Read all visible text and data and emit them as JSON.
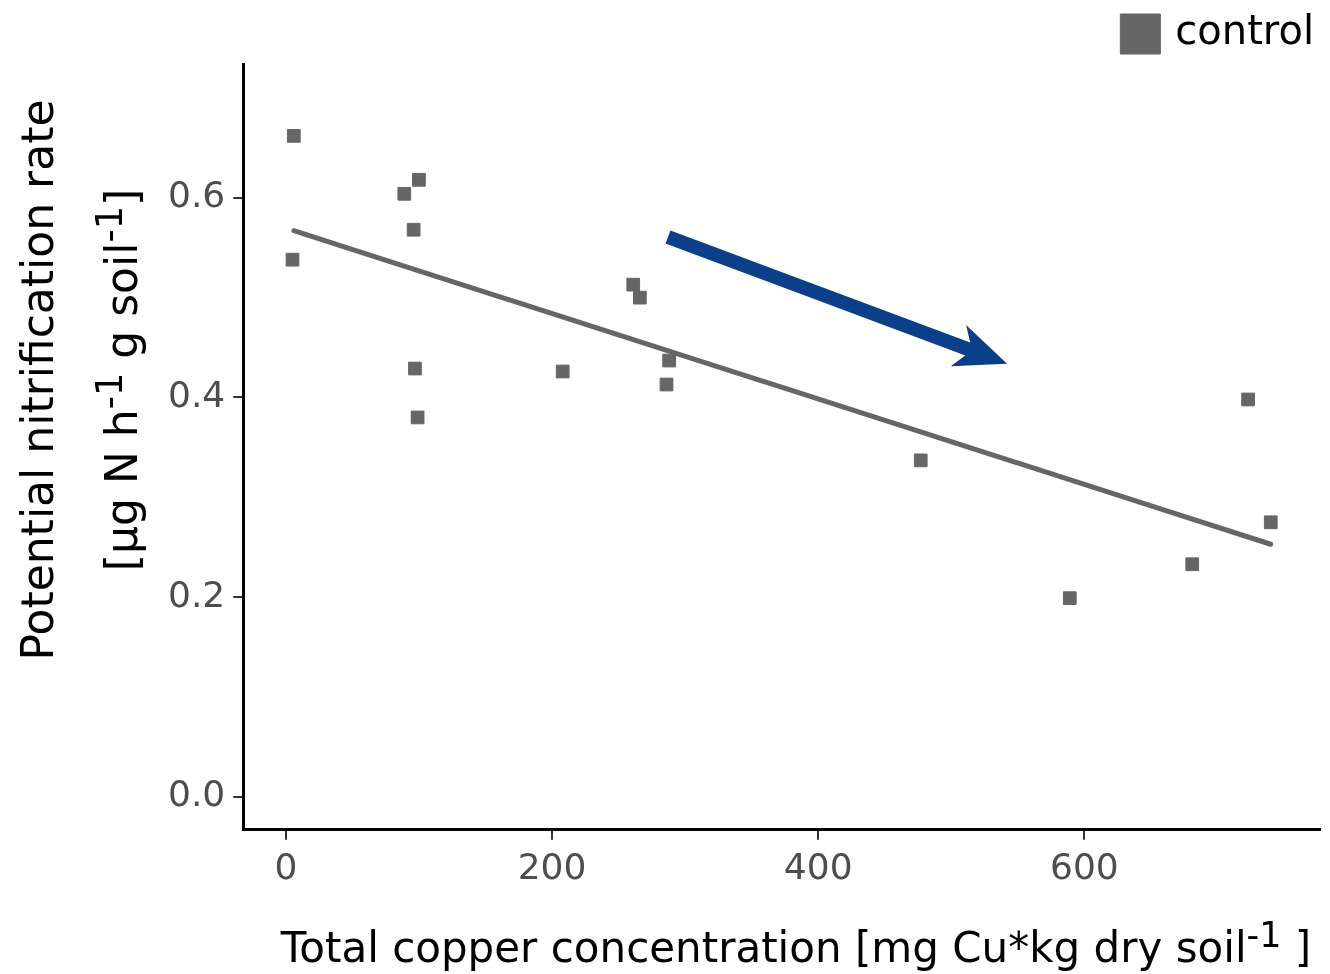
{
  "chart_data": {
    "type": "scatter",
    "xlabel": "Total copper concentration [mg Cu*kg dry soil$^{-1}$ ]",
    "ylabel": "Potential nitrification rate\n[µg N h$^{-1}$ g soil$^{-1}$]",
    "xlim": [
      -32,
      777
    ],
    "xticks": [
      0,
      200,
      400,
      600
    ],
    "ylim": [
      -0.033,
      0.734
    ],
    "yticks": [
      {
        "value": 0,
        "label": "0.0"
      },
      {
        "value": 0.2,
        "label": "0.2"
      },
      {
        "value": 0.4,
        "label": "0.4"
      },
      {
        "value": 0.6,
        "label": "0.6"
      }
    ],
    "grid": false,
    "legend": "top right",
    "marker": "square",
    "series": [
      {
        "name": "control",
        "color": "#666666",
        "x": [
          6,
          5,
          89,
          100,
          96,
          97,
          99,
          208,
          261,
          266,
          288,
          286,
          477,
          589,
          681,
          723,
          740
        ],
        "values": [
          0.662,
          0.538,
          0.604,
          0.618,
          0.568,
          0.429,
          0.38,
          0.426,
          0.513,
          0.5,
          0.437,
          0.413,
          0.337,
          0.199,
          0.233,
          0.398,
          0.275
        ]
      },
      {
        "type": "line",
        "marker": "none",
        "color": "#666666",
        "x": [
          6,
          740
        ],
        "values": [
          0.567,
          0.253
        ]
      }
    ]
  }
}
